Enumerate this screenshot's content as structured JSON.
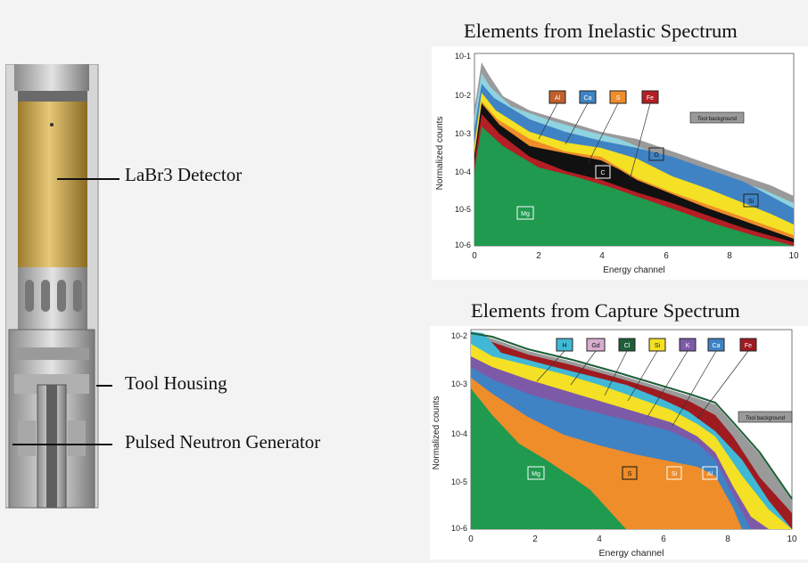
{
  "tool_labels": {
    "detector": "LaBr3 Detector",
    "housing": "Tool Housing",
    "generator": "Pulsed Neutron Generator"
  },
  "inelastic": {
    "title": "Elements from Inelastic Spectrum",
    "ylabel": "Normalized counts",
    "xlabel": "Energy channel",
    "xticks": [
      "0",
      "2",
      "4",
      "6",
      "8",
      "10"
    ],
    "yticks": [
      "10-1",
      "10-2",
      "10-3",
      "10-4",
      "10-5",
      "10-6"
    ],
    "elements": [
      "Al",
      "Ca",
      "S",
      "Fe"
    ],
    "inner_labels": [
      "O",
      "C",
      "Si",
      "Mg"
    ],
    "background_label": "Tool background",
    "colors": {
      "Al": "#c1602c",
      "Ca": "#3f83c4",
      "S": "#ee8d2a",
      "Fe": "#b31f24",
      "O": "#8fd3e0",
      "C": "#111111",
      "Si": "#f4e024",
      "Mg": "#1f9a4f",
      "background": "#9a9a9a"
    }
  },
  "capture": {
    "title": "Elements from Capture Spectrum",
    "ylabel": "Normalized counts",
    "xlabel": "Energy channel",
    "xticks": [
      "0",
      "2",
      "4",
      "6",
      "8",
      "10"
    ],
    "yticks": [
      "10-2",
      "10-3",
      "10-4",
      "10-5",
      "10-6"
    ],
    "elements": [
      "H",
      "Gd",
      "Cl",
      "Si",
      "K",
      "Ca",
      "Fe"
    ],
    "inner_labels": [
      "Mg",
      "S",
      "Si",
      "Al"
    ],
    "background_label": "Tool background",
    "colors": {
      "H": "#40b8d6",
      "Gd": "#d7aed0",
      "Cl": "#1e5e38",
      "Si": "#f4e024",
      "K": "#7d5aa8",
      "Ca": "#3f83c4",
      "Fe": "#9e1b20",
      "Mg": "#1f9a4f",
      "S": "#ee8d2a",
      "Al": "#c1602c",
      "background": "#9a9a9a"
    }
  }
}
